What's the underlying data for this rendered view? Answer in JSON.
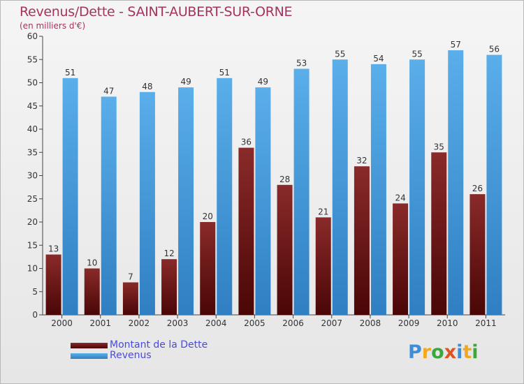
{
  "header": {
    "title": "Revenus/Dette - SAINT-AUBERT-SUR-ORNE",
    "subtitle": "(en milliers d'€)"
  },
  "legend": {
    "dette_label": "Montant de la Dette",
    "revenus_label": "Revenus"
  },
  "logo": {
    "text": "Proxiti"
  },
  "colors": {
    "dette": "#6e1818",
    "revenus": "#4ea8e8",
    "title": "#a6325f",
    "legend_text": "#4a4adb"
  },
  "chart_data": {
    "type": "bar",
    "title": "Revenus/Dette - SAINT-AUBERT-SUR-ORNE",
    "ylabel": "(en milliers d'€)",
    "xlabel": "",
    "categories": [
      "2000",
      "2001",
      "2002",
      "2003",
      "2004",
      "2005",
      "2006",
      "2007",
      "2008",
      "2009",
      "2010",
      "2011"
    ],
    "series": [
      {
        "name": "Montant de la Dette",
        "values": [
          13,
          10,
          7,
          12,
          20,
          36,
          28,
          21,
          32,
          24,
          35,
          26
        ]
      },
      {
        "name": "Revenus",
        "values": [
          51,
          47,
          48,
          49,
          51,
          49,
          53,
          55,
          54,
          55,
          57,
          56
        ]
      }
    ],
    "ylim": [
      0,
      60
    ],
    "yticks": [
      0,
      5,
      10,
      15,
      20,
      25,
      30,
      35,
      40,
      45,
      50,
      55,
      60
    ],
    "grid": false,
    "legend_position": "bottom-left"
  }
}
